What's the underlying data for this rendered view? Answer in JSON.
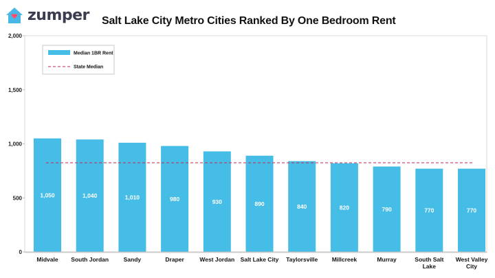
{
  "brand": {
    "name": "zumper",
    "accent": "#ff4f6d",
    "house_color": "#47b8e6"
  },
  "chart_data": {
    "type": "bar",
    "title": "Salt Lake City Metro Cities Ranked By One Bedroom Rent",
    "categories": [
      "Midvale",
      "South Jordan",
      "Sandy",
      "Draper",
      "West Jordan",
      "Salt Lake City",
      "Taylorsville",
      "Millcreek",
      "Murray",
      "South Salt Lake",
      "West Valley City"
    ],
    "series": [
      {
        "name": "Median 1BR Rent",
        "type": "bar",
        "color": "#46bde6",
        "values": [
          1050,
          1040,
          1010,
          980,
          930,
          890,
          840,
          820,
          790,
          770,
          770
        ]
      },
      {
        "name": "State Median",
        "type": "line",
        "style": "dashed",
        "color": "#c9264f",
        "value": 825
      }
    ],
    "data_labels": [
      "1,050",
      "1,040",
      "1,010",
      "980",
      "930",
      "890",
      "840",
      "820",
      "790",
      "770",
      "770"
    ],
    "ylim": [
      0,
      2000
    ],
    "yticks": [
      0,
      500,
      1000,
      1500,
      2000
    ],
    "ytick_labels": [
      "0",
      "500",
      "1,000",
      "1,500",
      "2,000"
    ],
    "xlabel": "",
    "ylabel": "",
    "grid": false,
    "legend_position": "top-left"
  }
}
